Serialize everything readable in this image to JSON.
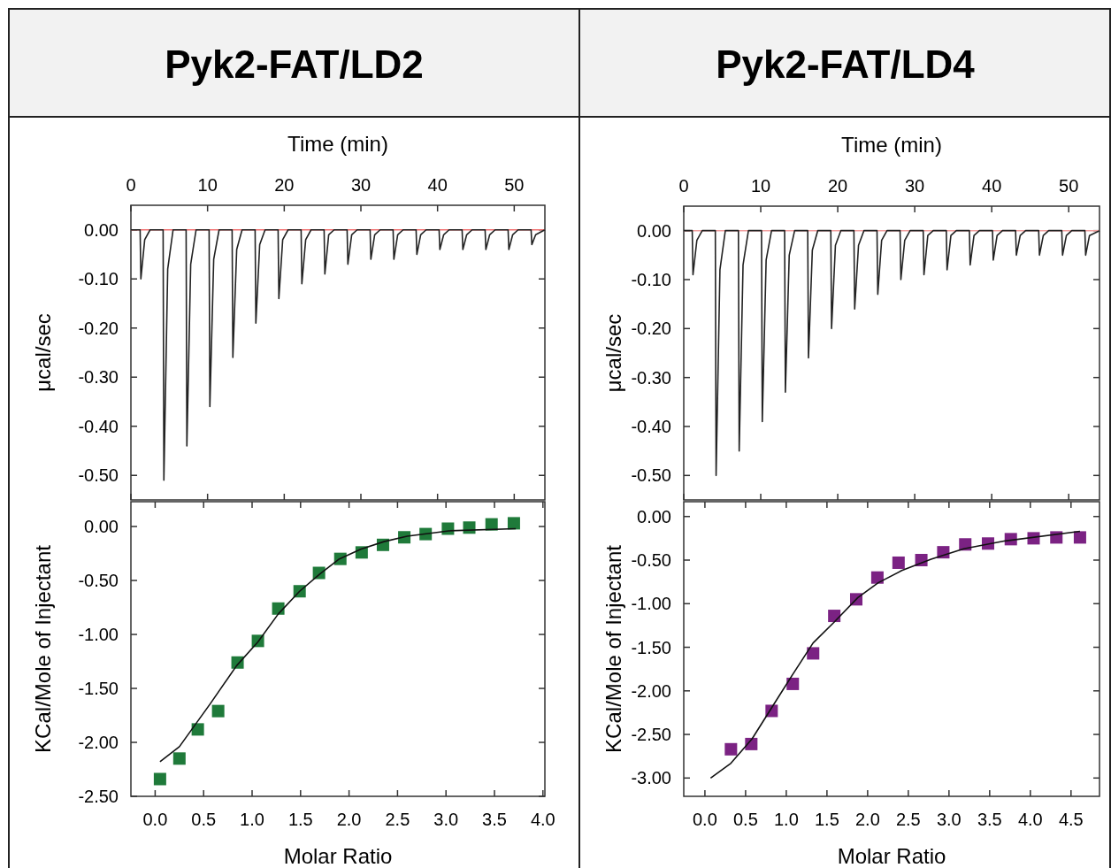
{
  "chart_data": [
    {
      "type": "line",
      "title": "Pyk2-FAT/LD2",
      "xlabel": "Time (min)",
      "ylabel": "μcal/sec",
      "xlim": [
        0,
        54
      ],
      "xticks": [
        0,
        10,
        20,
        30,
        40,
        50
      ],
      "ylim": [
        -0.55,
        0.05
      ],
      "yticks": [
        {
          "value": 0,
          "label": "0.00"
        },
        {
          "value": -0.1,
          "label": "-0.10"
        },
        {
          "value": -0.2,
          "label": "-0.20"
        },
        {
          "value": -0.3,
          "label": "-0.30"
        },
        {
          "value": -0.4,
          "label": "-0.40"
        },
        {
          "value": -0.5,
          "label": "-0.50"
        }
      ],
      "ref_lines": [
        {
          "axis": "y",
          "value": 0,
          "color": "#f07070"
        }
      ],
      "marker": "none",
      "series": [
        {
          "color": "#222222",
          "x": [
            0,
            1.2,
            1.3,
            1.8,
            2.5,
            4.2,
            4.3,
            4.8,
            5.5,
            7.2,
            7.3,
            7.8,
            8.5,
            10.2,
            10.3,
            10.8,
            11.5,
            13.2,
            13.3,
            13.8,
            14.5,
            16.2,
            16.3,
            16.8,
            17.5,
            19.2,
            19.3,
            19.8,
            20.5,
            22.2,
            22.3,
            22.8,
            23.5,
            25.2,
            25.3,
            25.8,
            26.5,
            28.2,
            28.3,
            28.8,
            29.5,
            31.2,
            31.3,
            31.8,
            32.5,
            34.2,
            34.3,
            34.8,
            35.5,
            37.2,
            37.3,
            37.8,
            38.5,
            40.2,
            40.3,
            40.8,
            41.5,
            43.2,
            43.3,
            43.8,
            44.5,
            46.2,
            46.3,
            46.8,
            47.5,
            49.2,
            49.3,
            49.8,
            50.5,
            52.2,
            52.3,
            52.8,
            54
          ],
          "values": [
            0,
            0,
            -0.1,
            -0.02,
            0,
            0,
            -0.51,
            -0.08,
            0,
            0,
            -0.44,
            -0.07,
            0,
            0,
            -0.36,
            -0.06,
            0,
            0,
            -0.26,
            -0.04,
            0,
            0,
            -0.19,
            -0.03,
            0,
            0,
            -0.14,
            -0.02,
            0,
            0,
            -0.11,
            -0.02,
            0,
            0,
            -0.09,
            -0.01,
            0,
            0,
            -0.07,
            -0.01,
            0,
            0,
            -0.06,
            -0.01,
            0,
            0,
            -0.06,
            -0.01,
            0,
            0,
            -0.05,
            -0.01,
            0,
            0,
            -0.04,
            -0.01,
            0,
            0,
            -0.04,
            -0.01,
            0,
            0,
            -0.04,
            -0.01,
            0,
            0,
            -0.04,
            -0.01,
            0,
            0,
            -0.03,
            -0.01,
            0
          ]
        }
      ]
    },
    {
      "type": "line",
      "title": "Pyk2-FAT/LD4",
      "xlabel": "Time (min)",
      "ylabel": "μcal/sec",
      "xlim": [
        0,
        54
      ],
      "xticks": [
        0,
        10,
        20,
        30,
        40,
        50
      ],
      "ylim": [
        -0.55,
        0.05
      ],
      "yticks": [
        {
          "value": 0,
          "label": "0.00"
        },
        {
          "value": -0.1,
          "label": "-0.10"
        },
        {
          "value": -0.2,
          "label": "-0.20"
        },
        {
          "value": -0.3,
          "label": "-0.30"
        },
        {
          "value": -0.4,
          "label": "-0.40"
        },
        {
          "value": -0.5,
          "label": "-0.50"
        }
      ],
      "ref_lines": [
        {
          "axis": "y",
          "value": 0,
          "color": "#f0a0a0"
        }
      ],
      "marker": "none",
      "series": [
        {
          "color": "#222222",
          "x": [
            0,
            1.1,
            1.2,
            1.7,
            2.4,
            4.1,
            4.2,
            4.7,
            5.4,
            7.1,
            7.2,
            7.7,
            8.4,
            10.1,
            10.2,
            10.7,
            11.4,
            13.1,
            13.2,
            13.7,
            14.4,
            16.1,
            16.2,
            16.7,
            17.4,
            19.1,
            19.2,
            19.7,
            20.4,
            22.1,
            22.2,
            22.7,
            23.4,
            25.1,
            25.2,
            25.7,
            26.4,
            28.1,
            28.2,
            28.7,
            29.4,
            31.1,
            31.2,
            31.7,
            32.4,
            34.1,
            34.2,
            34.7,
            35.4,
            37.1,
            37.2,
            37.7,
            38.4,
            40.1,
            40.2,
            40.7,
            41.4,
            43.1,
            43.2,
            43.7,
            44.4,
            46.1,
            46.2,
            46.7,
            47.4,
            49.1,
            49.2,
            49.7,
            50.4,
            52.1,
            52.2,
            52.7,
            54
          ],
          "values": [
            0,
            0,
            -0.09,
            -0.02,
            0,
            0,
            -0.5,
            -0.08,
            0,
            0,
            -0.45,
            -0.07,
            0,
            0,
            -0.39,
            -0.06,
            0,
            0,
            -0.33,
            -0.05,
            0,
            0,
            -0.26,
            -0.04,
            0,
            0,
            -0.2,
            -0.03,
            0,
            0,
            -0.16,
            -0.03,
            0,
            0,
            -0.13,
            -0.02,
            0,
            0,
            -0.1,
            -0.02,
            0,
            0,
            -0.09,
            -0.01,
            0,
            0,
            -0.08,
            -0.01,
            0,
            0,
            -0.07,
            -0.01,
            0,
            0,
            -0.06,
            -0.01,
            0,
            0,
            -0.05,
            -0.01,
            0,
            0,
            -0.05,
            -0.01,
            0,
            0,
            -0.05,
            -0.01,
            0,
            0,
            -0.05,
            -0.01,
            0
          ]
        }
      ]
    },
    {
      "type": "scatter",
      "xlabel": "Molar Ratio",
      "ylabel": "KCal/Mole of Injectant",
      "xlim": [
        -0.25,
        4.02
      ],
      "xticks": [
        {
          "value": 0,
          "label": "0.0"
        },
        0.5,
        {
          "value": 1,
          "label": "1.0"
        },
        1.5,
        {
          "value": 2,
          "label": "2.0"
        },
        2.5,
        {
          "value": 3,
          "label": "3.0"
        },
        3.5,
        {
          "value": 4,
          "label": "4.0"
        }
      ],
      "ylim": [
        -2.5,
        0.23
      ],
      "yticks": [
        {
          "value": 0,
          "label": "0.00"
        },
        {
          "value": -0.5,
          "label": "-0.50"
        },
        {
          "value": -1,
          "label": "-1.00"
        },
        {
          "value": -1.5,
          "label": "-1.50"
        },
        {
          "value": -2,
          "label": "-2.00"
        },
        {
          "value": -2.5,
          "label": "-2.50"
        }
      ],
      "marker": "square",
      "series": [
        {
          "color": "#1f7a3a",
          "x": [
            0.05,
            0.25,
            0.44,
            0.65,
            0.85,
            1.06,
            1.27,
            1.49,
            1.69,
            1.91,
            2.13,
            2.35,
            2.57,
            2.79,
            3.02,
            3.24,
            3.47,
            3.7
          ],
          "values": [
            -2.34,
            -2.15,
            -1.88,
            -1.71,
            -1.26,
            -1.06,
            -0.76,
            -0.6,
            -0.43,
            -0.3,
            -0.24,
            -0.17,
            -0.1,
            -0.07,
            -0.02,
            -0.01,
            0.02,
            0.03
          ]
        },
        {
          "type": "line",
          "marker": "none",
          "color": "#111111",
          "x": [
            0.05,
            0.25,
            0.57,
            0.84,
            1.06,
            1.27,
            1.49,
            1.7,
            1.9,
            2.12,
            2.36,
            2.6,
            3.03,
            3.72
          ],
          "values": [
            -2.18,
            -2.04,
            -1.64,
            -1.29,
            -1.07,
            -0.81,
            -0.6,
            -0.44,
            -0.3,
            -0.21,
            -0.14,
            -0.09,
            -0.04,
            -0.02
          ]
        }
      ]
    },
    {
      "type": "scatter",
      "xlabel": "Molar Ratio",
      "ylabel": "KCal/Mole of Injectant",
      "xlim": [
        -0.26,
        4.85
      ],
      "xticks": [
        {
          "value": 0,
          "label": "0.0"
        },
        0.5,
        {
          "value": 1,
          "label": "1.0"
        },
        1.5,
        {
          "value": 2,
          "label": "2.0"
        },
        2.5,
        {
          "value": 3,
          "label": "3.0"
        },
        3.5,
        {
          "value": 4,
          "label": "4.0"
        },
        4.5
      ],
      "ylim": [
        -3.21,
        0.17
      ],
      "yticks": [
        {
          "value": 0,
          "label": "0.00"
        },
        {
          "value": -0.5,
          "label": "-0.50"
        },
        {
          "value": -1,
          "label": "-1.00"
        },
        {
          "value": -1.5,
          "label": "-1.50"
        },
        {
          "value": -2,
          "label": "-2.00"
        },
        {
          "value": -2.5,
          "label": "-2.50"
        },
        {
          "value": -3,
          "label": "-3.00"
        }
      ],
      "marker": "square",
      "series": [
        {
          "color": "#7b2283",
          "x": [
            0.32,
            0.57,
            0.82,
            1.08,
            1.33,
            1.59,
            1.86,
            2.12,
            2.38,
            2.66,
            2.93,
            3.2,
            3.48,
            3.76,
            4.04,
            4.32,
            4.61
          ],
          "values": [
            -2.67,
            -2.61,
            -2.23,
            -1.92,
            -1.57,
            -1.14,
            -0.95,
            -0.7,
            -0.53,
            -0.5,
            -0.41,
            -0.32,
            -0.31,
            -0.26,
            -0.25,
            -0.24,
            -0.24
          ]
        },
        {
          "type": "line",
          "marker": "none",
          "color": "#111111",
          "x": [
            0.07,
            0.32,
            0.58,
            0.83,
            1.08,
            1.33,
            1.59,
            1.88,
            2.13,
            2.42,
            2.78,
            3.18,
            3.69,
            4.61
          ],
          "values": [
            -3.0,
            -2.83,
            -2.55,
            -2.18,
            -1.81,
            -1.45,
            -1.21,
            -0.93,
            -0.76,
            -0.62,
            -0.49,
            -0.37,
            -0.28,
            -0.17
          ]
        }
      ]
    }
  ]
}
